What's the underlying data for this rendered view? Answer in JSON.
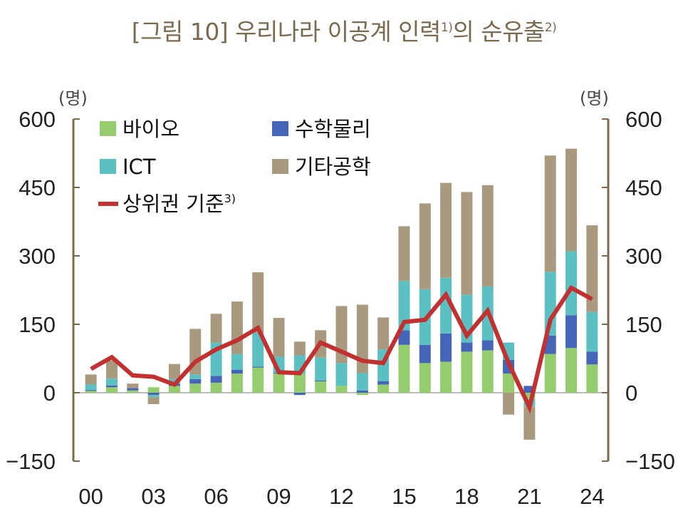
{
  "title": {
    "main": "[그림 10] 우리나라 이공계 인력",
    "sup1": "1)",
    "mid": "의 순유출",
    "sup2": "2)"
  },
  "chart_data": {
    "type": "bar",
    "stacked": true,
    "title": "[그림 10] 우리나라 이공계 인력1)의 순유출2)",
    "ylabel_left": "(명)",
    "ylabel_right": "(명)",
    "ylim": [
      -150,
      600
    ],
    "yticks": [
      -150,
      0,
      150,
      300,
      450,
      600
    ],
    "xtick_labels": [
      "00",
      "03",
      "06",
      "09",
      "12",
      "15",
      "18",
      "21",
      "24"
    ],
    "categories": [
      "00",
      "01",
      "02",
      "03",
      "04",
      "05",
      "06",
      "07",
      "08",
      "09",
      "10",
      "11",
      "12",
      "13",
      "14",
      "15",
      "16",
      "17",
      "18",
      "19",
      "20",
      "21",
      "22",
      "23",
      "24"
    ],
    "series": [
      {
        "name": "바이오",
        "kind": "bar",
        "color": "#94cc6e",
        "values": [
          4,
          12,
          5,
          12,
          15,
          20,
          22,
          42,
          55,
          42,
          42,
          25,
          15,
          -5,
          18,
          105,
          65,
          68,
          90,
          93,
          42,
          -15,
          85,
          98,
          62
        ]
      },
      {
        "name": "수학물리",
        "kind": "bar",
        "color": "#4565b8",
        "values": [
          2,
          4,
          5,
          -5,
          5,
          10,
          15,
          8,
          2,
          2,
          -5,
          2,
          0,
          5,
          7,
          32,
          40,
          62,
          20,
          22,
          30,
          15,
          40,
          72,
          28
        ]
      },
      {
        "name": "ICT",
        "kind": "bar",
        "color": "#5bc0c2",
        "values": [
          12,
          15,
          0,
          -5,
          10,
          10,
          73,
          35,
          75,
          35,
          40,
          50,
          50,
          38,
          70,
          108,
          122,
          122,
          105,
          118,
          38,
          -15,
          140,
          140,
          87
        ]
      },
      {
        "name": "기타공학",
        "kind": "bar",
        "color": "#a99a7f",
        "values": [
          22,
          40,
          10,
          -15,
          33,
          100,
          63,
          115,
          132,
          85,
          30,
          60,
          125,
          150,
          70,
          120,
          188,
          208,
          225,
          222,
          -48,
          -73,
          255,
          225,
          190
        ]
      },
      {
        "name": "상위권 기준",
        "sup": "3)",
        "kind": "line",
        "color": "#c23030",
        "values": [
          52,
          78,
          38,
          35,
          18,
          68,
          95,
          115,
          142,
          45,
          43,
          110,
          90,
          70,
          65,
          155,
          160,
          215,
          125,
          180,
          65,
          -32,
          160,
          230,
          205
        ]
      }
    ],
    "legend": {
      "placement": "top-left"
    }
  }
}
